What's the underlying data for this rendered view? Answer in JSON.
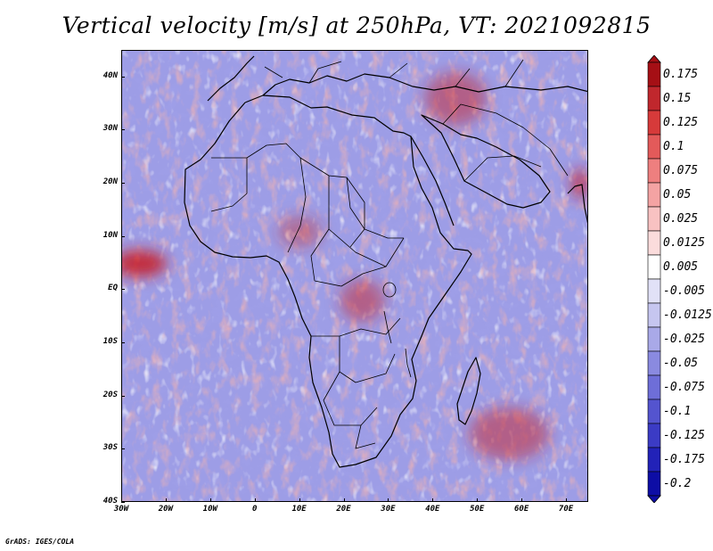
{
  "title": "Vertical velocity [m/s] at 250hPa, VT: 2021092815",
  "footer": "GrADS: IGES/COLA",
  "map": {
    "extent": {
      "lon_min": -30,
      "lon_max": 75,
      "lat_min": -40,
      "lat_max": 45
    },
    "lat_ticks": [
      {
        "value": 40,
        "label": "40N"
      },
      {
        "value": 30,
        "label": "30N"
      },
      {
        "value": 20,
        "label": "20N"
      },
      {
        "value": 10,
        "label": "10N"
      },
      {
        "value": 0,
        "label": "EQ"
      },
      {
        "value": -10,
        "label": "10S"
      },
      {
        "value": -20,
        "label": "20S"
      },
      {
        "value": -30,
        "label": "30S"
      },
      {
        "value": -40,
        "label": "40S"
      }
    ],
    "lon_ticks": [
      {
        "value": -30,
        "label": "30W"
      },
      {
        "value": -20,
        "label": "20W"
      },
      {
        "value": -10,
        "label": "10W"
      },
      {
        "value": 0,
        "label": "0"
      },
      {
        "value": 10,
        "label": "10E"
      },
      {
        "value": 20,
        "label": "20E"
      },
      {
        "value": 30,
        "label": "30E"
      },
      {
        "value": 40,
        "label": "40E"
      },
      {
        "value": 50,
        "label": "50E"
      },
      {
        "value": 60,
        "label": "60E"
      },
      {
        "value": 70,
        "label": "70E"
      }
    ],
    "updraft_regions": [
      {
        "name": "atlantic-itcz",
        "lon": -26,
        "lat": 5,
        "rx": 6,
        "ry": 2.5,
        "strength": 0.9
      },
      {
        "name": "central-africa",
        "lon": 24,
        "lat": -2,
        "rx": 5,
        "ry": 4,
        "strength": 0.5
      },
      {
        "name": "sw-indian-ocean",
        "lon": 57,
        "lat": -27,
        "rx": 9,
        "ry": 5,
        "strength": 0.5
      },
      {
        "name": "arabian-sea-coast",
        "lon": 73,
        "lat": 20,
        "rx": 2,
        "ry": 3,
        "strength": 0.7
      },
      {
        "name": "west-africa",
        "lon": 10,
        "lat": 11,
        "rx": 5,
        "ry": 3,
        "strength": 0.4
      },
      {
        "name": "middle-east",
        "lon": 45,
        "lat": 36,
        "rx": 7,
        "ry": 5,
        "strength": 0.5
      }
    ]
  },
  "colorbar": {
    "colors": [
      "#a50f15",
      "#c0272d",
      "#d63a3a",
      "#e35a5a",
      "#ee7f7f",
      "#f4a3a3",
      "#f8c2c2",
      "#fbdcdc",
      "#ffffff",
      "#e1e1f7",
      "#c6c6f0",
      "#a9a9e8",
      "#8a8ae0",
      "#6e6ed8",
      "#5454cf",
      "#3b3bc5",
      "#2222b8",
      "#0d0da5"
    ],
    "labels": [
      "0.175",
      "0.15",
      "0.125",
      "0.1",
      "0.075",
      "0.05",
      "0.025",
      "0.0125",
      "0.005",
      "-0.005",
      "-0.0125",
      "-0.025",
      "-0.05",
      "-0.075",
      "-0.1",
      "-0.125",
      "-0.175",
      "-0.2"
    ]
  }
}
